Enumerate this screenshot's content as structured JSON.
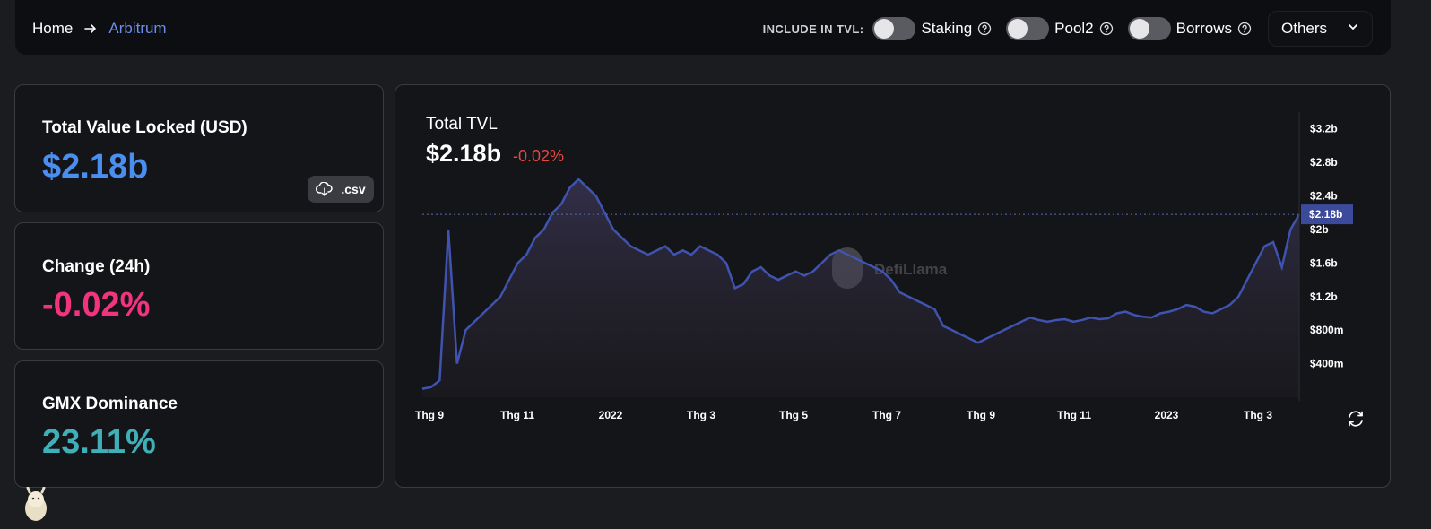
{
  "breadcrumb": {
    "home": "Home",
    "current": "Arbitrum"
  },
  "tvl_filters": {
    "label": "INCLUDE IN TVL:",
    "toggles": [
      {
        "label": "Staking",
        "on": false
      },
      {
        "label": "Pool2",
        "on": false
      },
      {
        "label": "Borrows",
        "on": false
      }
    ],
    "others_label": "Others"
  },
  "stats": {
    "tvl": {
      "title": "Total Value Locked (USD)",
      "value": "$2.18b",
      "color": "#4a8ff0"
    },
    "csv_label": ".csv",
    "change": {
      "title": "Change (24h)",
      "value": "-0.02%",
      "color": "#f2347f"
    },
    "dominance": {
      "title": "GMX Dominance",
      "value": "23.11%",
      "color": "#3fb0b8"
    }
  },
  "chart": {
    "title": "Total TVL",
    "value": "$2.18b",
    "change": "-0.02%",
    "watermark": "DefiLlama",
    "current_label": "$2.18b"
  },
  "chart_data": {
    "type": "area",
    "series": [
      {
        "values": [
          0.1,
          0.12,
          0.2,
          2.0,
          0.4,
          0.8,
          0.9,
          1.0,
          1.1,
          1.2,
          1.4,
          1.6,
          1.7,
          1.9,
          2.0,
          2.2,
          2.3,
          2.5,
          2.6,
          2.5,
          2.4,
          2.2,
          2.0,
          1.9,
          1.8,
          1.75,
          1.7,
          1.75,
          1.8,
          1.7,
          1.75,
          1.7,
          1.8,
          1.75,
          1.7,
          1.6,
          1.3,
          1.35,
          1.5,
          1.55,
          1.45,
          1.4,
          1.45,
          1.5,
          1.45,
          1.5,
          1.6,
          1.7,
          1.75,
          1.7,
          1.65,
          1.6,
          1.55,
          1.5,
          1.4,
          1.25,
          1.2,
          1.15,
          1.1,
          1.05,
          0.85,
          0.8,
          0.75,
          0.7,
          0.65,
          0.7,
          0.75,
          0.8,
          0.85,
          0.9,
          0.95,
          0.92,
          0.9,
          0.92,
          0.93,
          0.9,
          0.92,
          0.95,
          0.93,
          0.94,
          1.0,
          1.02,
          0.98,
          0.96,
          0.95,
          1.0,
          1.02,
          1.05,
          1.1,
          1.08,
          1.02,
          1.0,
          1.05,
          1.1,
          1.2,
          1.4,
          1.6,
          1.8,
          1.85,
          1.55,
          2.0,
          2.18
        ]
      }
    ],
    "x_labels": [
      "Thg 9",
      "Thg 11",
      "2022",
      "Thg 3",
      "Thg 5",
      "Thg 7",
      "Thg 9",
      "Thg 11",
      "2023",
      "Thg 3"
    ],
    "y_labels": [
      "$3.2b",
      "$2.8b",
      "$2.4b",
      "$2b",
      "$1.6b",
      "$1.2b",
      "$800m",
      "$400m"
    ],
    "ylim": [
      0,
      3.4
    ],
    "color": "#3f53b0"
  }
}
